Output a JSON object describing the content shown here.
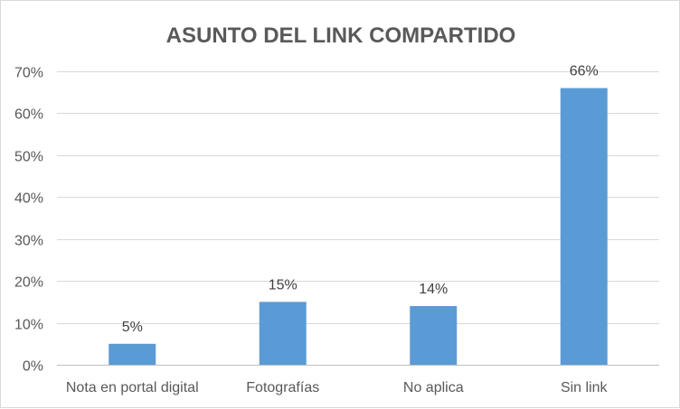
{
  "chart_data": {
    "type": "bar",
    "title": "ASUNTO DEL LINK COMPARTIDO",
    "categories": [
      "Nota en portal digital",
      "Fotografías",
      "No aplica",
      "Sin link"
    ],
    "values": [
      5,
      15,
      14,
      66
    ],
    "data_labels": [
      "5%",
      "15%",
      "14%",
      "66%"
    ],
    "ylim": [
      0,
      70
    ],
    "yticks": [
      0,
      10,
      20,
      30,
      40,
      50,
      60,
      70
    ],
    "ytick_labels": [
      "0%",
      "10%",
      "20%",
      "30%",
      "40%",
      "50%",
      "60%",
      "70%"
    ],
    "xlabel": "",
    "ylabel": "",
    "grid": true,
    "legend": "none",
    "bar_color": "#5b9bd5"
  }
}
